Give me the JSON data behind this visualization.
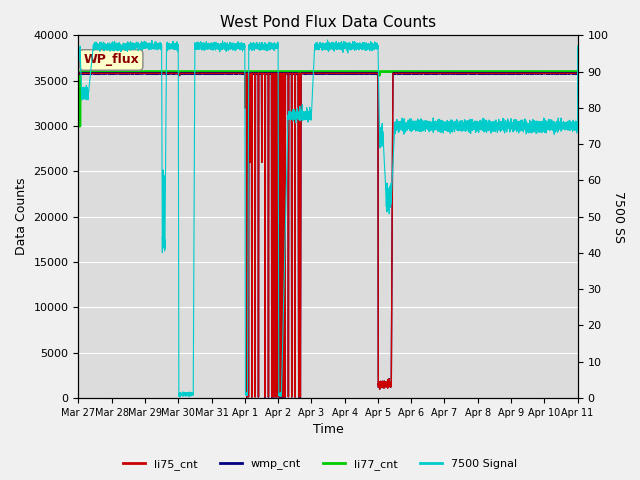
{
  "title": "West Pond Flux Data Counts",
  "xlabel": "Time",
  "ylabel": "Data Counts",
  "ylabel_right": "7500 SS",
  "ylim_left": [
    0,
    40000
  ],
  "ylim_right": [
    0,
    100
  ],
  "background_color": "#dcdcdc",
  "figure_color": "#f0f0f0",
  "legend_box_label": "WP_flux",
  "legend_box_color": "#ffffcc",
  "legend_box_text_color": "#8b0000",
  "grid_color": "#ffffff",
  "colors": {
    "li75_cnt": "#cc0000",
    "wmp_cnt": "#000080",
    "li77_cnt": "#00cc00",
    "signal7500": "#00cccc"
  },
  "x_tick_labels": [
    "Mar 27",
    "Mar 28",
    "Mar 29",
    "Mar 30",
    "Mar 31",
    "Apr 1",
    "Apr 2",
    "Apr 3",
    "Apr 4",
    "Apr 5",
    "Apr 6",
    "Apr 7",
    "Apr 8",
    "Apr 9",
    "Apr 10",
    "Apr 11"
  ],
  "x_tick_positions": [
    0,
    1,
    2,
    3,
    4,
    5,
    6,
    7,
    8,
    9,
    10,
    11,
    12,
    13,
    14,
    15
  ],
  "li77_base": 36000,
  "li75_base": 35800,
  "sig7500_high": 38800,
  "sig7500_mid": 30000,
  "sig7500_scale": 400.0
}
